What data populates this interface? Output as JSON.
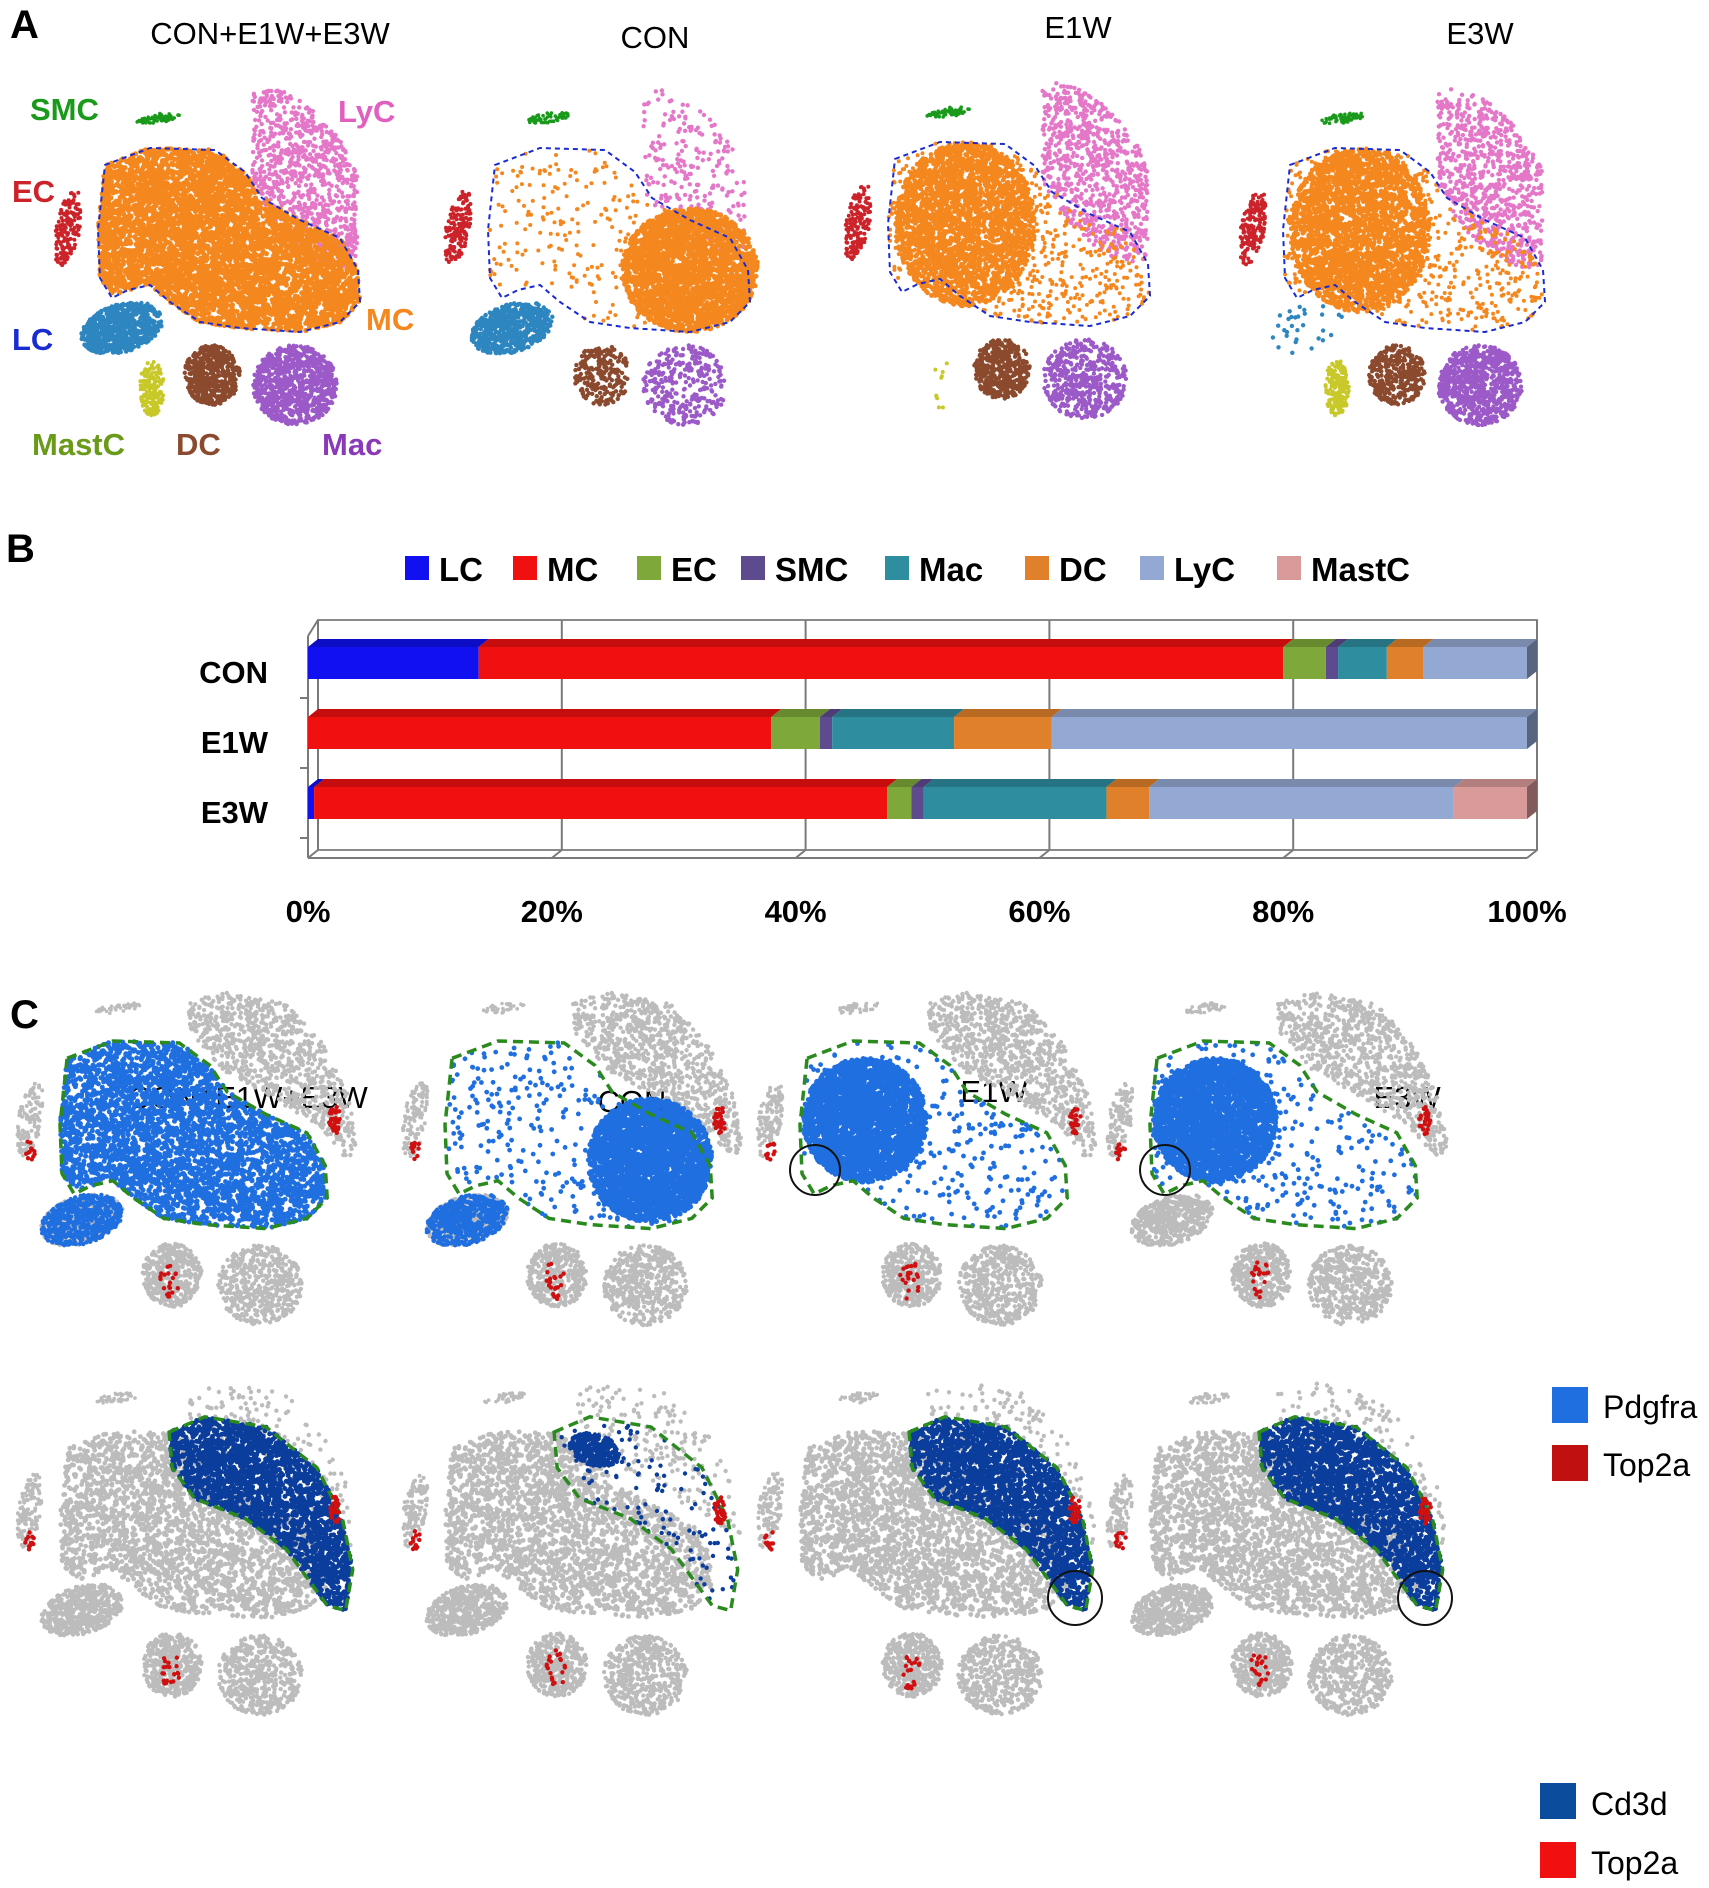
{
  "colors": {
    "MC": "#f5871f",
    "LyC": "#e477c8",
    "SMC": "#1a9a1a",
    "EC": "#cc2229",
    "LC": "#2e86c1",
    "MastC": "#c8c828",
    "DC": "#8b4a2e",
    "Mac": "#9b5ac8",
    "gray": "#bcbcbc",
    "pdgfra": "#1f6fe0",
    "cd3d": "#0b3d9c",
    "top2a": "#d01010",
    "outline_a": "#1a2cd0",
    "outline_c": "#2a8a1e"
  },
  "panel_a": {
    "letter": "A",
    "titles": [
      "CON+E1W+E3W",
      "CON",
      "E1W",
      "E3W"
    ],
    "cluster_labels": {
      "SMC": "SMC",
      "LyC": "LyC",
      "EC": "EC",
      "MC": "MC",
      "LC": "LC",
      "MastC": "MastC",
      "DC": "DC",
      "Mac": "Mac"
    }
  },
  "panel_b": {
    "letter": "B",
    "chart_data": {
      "type": "bar",
      "orientation": "horizontal-stacked-100",
      "categories": [
        "CON",
        "E1W",
        "E3W"
      ],
      "series": [
        {
          "name": "LC",
          "color": "#1010f0",
          "values": [
            14,
            0,
            0.5
          ]
        },
        {
          "name": "MC",
          "color": "#f01010",
          "values": [
            66,
            38,
            47
          ]
        },
        {
          "name": "EC",
          "color": "#7ea83a",
          "values": [
            3.5,
            4,
            2
          ]
        },
        {
          "name": "SMC",
          "color": "#5e4a8e",
          "values": [
            1,
            1,
            1
          ]
        },
        {
          "name": "Mac",
          "color": "#2e8ea0",
          "values": [
            4,
            10,
            15
          ]
        },
        {
          "name": "DC",
          "color": "#e0802a",
          "values": [
            3,
            8,
            3.5
          ]
        },
        {
          "name": "LyC",
          "color": "#93a8d2",
          "values": [
            8.5,
            39,
            25
          ]
        },
        {
          "name": "MastC",
          "color": "#d99a9a",
          "values": [
            0,
            0,
            6
          ]
        }
      ],
      "x_ticks": [
        "0%",
        "20%",
        "40%",
        "60%",
        "80%",
        "100%"
      ],
      "xlim": [
        0,
        100
      ],
      "legend": "top",
      "grid": true
    }
  },
  "panel_c": {
    "letter": "C",
    "titles": [
      "CON+E1W+E3W",
      "CON",
      "E1W",
      "E3W"
    ],
    "legend_top": [
      {
        "label": "Pdgfra",
        "color": "#1f6fe0"
      },
      {
        "label": "Top2a",
        "color": "#c01010"
      }
    ],
    "legend_bottom": [
      {
        "label": "Cd3d",
        "color": "#0b4c9c"
      },
      {
        "label": "Top2a",
        "color": "#f01010"
      }
    ]
  }
}
